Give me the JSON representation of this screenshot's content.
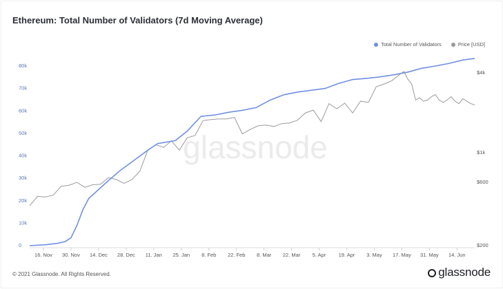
{
  "header": {
    "title": "Ethereum: Total Number of Validators (7d Moving Average)"
  },
  "legend": {
    "validators_label": "Total Number of Validators",
    "price_label": "Price [USD]"
  },
  "watermark": "glassnode",
  "footer": {
    "copyright": "© 2021 Glassnode. All Rights Reserved.",
    "logo_text": "glassnode"
  },
  "colors": {
    "validators": "#6f8fe0",
    "price": "#9a9a9a",
    "axis_text": "#5a78b8",
    "watermark": "#e9e9e9"
  },
  "chart_data": {
    "type": "line",
    "title": "Ethereum: Total Number of Validators (7d Moving Average)",
    "x_ticks": [
      "16. Nov",
      "30. Nov",
      "14. Dec",
      "28. Dec",
      "11. Jan",
      "25. Jan",
      "8. Feb",
      "22. Feb",
      "8. Mar",
      "22. Mar",
      "5. Apr",
      "19. Apr",
      "3. May",
      "17. May",
      "31. May",
      "14. Jun"
    ],
    "x_range": [
      0,
      226
    ],
    "y_left_ticks": [
      "0",
      "10k",
      "20k",
      "30k",
      "40k",
      "50k",
      "60k",
      "70k",
      "80k"
    ],
    "y_left_range": [
      0,
      80000
    ],
    "y_right_ticks": [
      "$200",
      "$600",
      "$1k",
      "$4k"
    ],
    "y_right_scale": "log",
    "y_right_range": [
      200,
      4000
    ],
    "grid": false,
    "legend_position": "top-right",
    "series": [
      {
        "name": "Total Number of Validators",
        "axis": "left",
        "x": [
          0,
          8,
          14,
          18,
          21,
          24,
          27,
          30,
          35,
          40,
          46,
          53,
          60,
          65,
          70,
          74,
          80,
          87,
          94,
          101,
          108,
          115,
          122,
          129,
          136,
          143,
          150,
          157,
          164,
          171,
          178,
          185,
          192,
          199,
          206,
          213,
          220,
          226
        ],
        "values": [
          0,
          400,
          1000,
          1800,
          3500,
          9000,
          16000,
          21000,
          25000,
          29000,
          33500,
          38000,
          42500,
          45500,
          46200,
          46800,
          51000,
          57600,
          58200,
          59400,
          60300,
          61500,
          64800,
          67200,
          68400,
          69200,
          70000,
          72300,
          74000,
          74500,
          75200,
          76100,
          77300,
          79000,
          80000,
          81200,
          82700,
          83400
        ]
      },
      {
        "name": "Price [USD]",
        "axis": "right",
        "x": [
          0,
          4,
          8,
          12,
          16,
          20,
          24,
          28,
          32,
          36,
          40,
          44,
          48,
          52,
          56,
          60,
          64,
          68,
          72,
          76,
          80,
          84,
          88,
          92,
          96,
          100,
          104,
          108,
          112,
          116,
          120,
          124,
          128,
          132,
          136,
          140,
          144,
          148,
          152,
          156,
          160,
          164,
          168,
          172,
          176,
          180,
          184,
          188,
          190,
          192,
          194,
          196,
          198,
          200,
          202,
          204,
          206,
          208,
          210,
          212,
          214,
          216,
          218,
          220,
          222,
          224,
          226
        ],
        "values": [
          400,
          470,
          465,
          480,
          560,
          570,
          600,
          550,
          575,
          580,
          650,
          630,
          590,
          630,
          730,
          1050,
          1150,
          1100,
          1230,
          1050,
          1300,
          1350,
          1750,
          1780,
          1800,
          1800,
          1850,
          1390,
          1500,
          1600,
          1620,
          1580,
          1660,
          1680,
          1760,
          2000,
          2100,
          1720,
          2350,
          2150,
          2370,
          2000,
          2450,
          2400,
          3150,
          3300,
          3500,
          3900,
          4100,
          3600,
          3300,
          2500,
          2600,
          2450,
          2500,
          2650,
          2750,
          2500,
          2400,
          2500,
          2650,
          2450,
          2350,
          2560,
          2450,
          2350,
          2300
        ]
      }
    ]
  }
}
